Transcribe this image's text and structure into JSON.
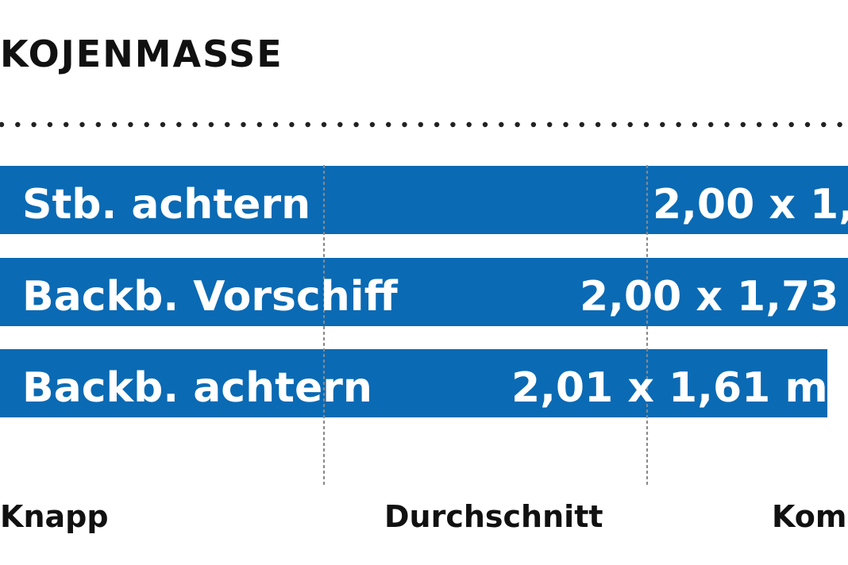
{
  "title": "KOJENMASSE",
  "colors": {
    "bar": "#0a6ab4",
    "text_dark": "#111111",
    "text_light": "#ffffff",
    "guide": "#888888",
    "separator": "#222222"
  },
  "chart_data": {
    "type": "bar",
    "orientation": "horizontal",
    "title": "KOJENMASSE",
    "categories": [
      "Stb. achtern",
      "Backb. Vorschiff",
      "Backb. achtern"
    ],
    "value_labels": [
      "2,00 x 1,",
      "2,00 x 1,73 m",
      "2,01 x 1,61 m"
    ],
    "scale_labels": [
      "Knapp",
      "Durchschnitt",
      "Kom"
    ],
    "grid": false,
    "legend": "none"
  }
}
